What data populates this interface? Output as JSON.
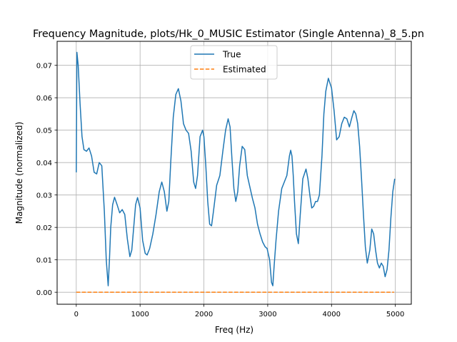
{
  "colors": {
    "true": "#1f77b4",
    "estimated": "#ff7f0e",
    "grid": "#b0b0b0",
    "axes": "#000000"
  },
  "chart_data": {
    "type": "line",
    "title": "Frequency Magnitude, plots/Hk_0_MUSIC Estimator (Single Antenna)_8_5.pn",
    "xlabel": "Freq (Hz)",
    "ylabel": "Magnitude (normalized)",
    "xlim": [
      -300,
      5250
    ],
    "ylim": [
      -0.0037,
      0.0774
    ],
    "xticks": [
      0,
      1000,
      2000,
      3000,
      4000,
      5000
    ],
    "xtick_labels": [
      "0",
      "1000",
      "2000",
      "3000",
      "4000",
      "5000"
    ],
    "yticks": [
      0.0,
      0.01,
      0.02,
      0.03,
      0.04,
      0.05,
      0.06,
      0.07
    ],
    "ytick_labels": [
      "0.00",
      "0.01",
      "0.02",
      "0.03",
      "0.04",
      "0.05",
      "0.06",
      "0.07"
    ],
    "grid": true,
    "legend_position": "top-center",
    "series": [
      {
        "name": "True",
        "style": "solid",
        "x": [
          0,
          10,
          30,
          60,
          90,
          120,
          160,
          200,
          240,
          280,
          320,
          360,
          400,
          440,
          470,
          500,
          520,
          540,
          570,
          600,
          640,
          680,
          720,
          760,
          800,
          840,
          870,
          900,
          930,
          960,
          1000,
          1040,
          1080,
          1110,
          1150,
          1200,
          1250,
          1300,
          1340,
          1380,
          1420,
          1450,
          1480,
          1520,
          1560,
          1600,
          1640,
          1680,
          1720,
          1760,
          1800,
          1840,
          1870,
          1900,
          1940,
          1980,
          2000,
          2030,
          2060,
          2090,
          2120,
          2150,
          2200,
          2250,
          2300,
          2340,
          2380,
          2410,
          2440,
          2470,
          2500,
          2530,
          2560,
          2600,
          2640,
          2680,
          2720,
          2760,
          2800,
          2840,
          2880,
          2920,
          2960,
          2990,
          3030,
          3060,
          3080,
          3100,
          3130,
          3170,
          3220,
          3260,
          3300,
          3340,
          3360,
          3380,
          3400,
          3420,
          3450,
          3480,
          3510,
          3550,
          3600,
          3630,
          3660,
          3690,
          3720,
          3750,
          3780,
          3810,
          3850,
          3880,
          3910,
          3950,
          4000,
          4040,
          4080,
          4120,
          4160,
          4200,
          4240,
          4280,
          4320,
          4350,
          4380,
          4410,
          4440,
          4470,
          4500,
          4530,
          4560,
          4600,
          4630,
          4660,
          4690,
          4720,
          4750,
          4780,
          4810,
          4840,
          4870,
          4900,
          4930,
          4960,
          4990
        ],
        "y": [
          0.037,
          0.074,
          0.07,
          0.058,
          0.048,
          0.044,
          0.0435,
          0.0445,
          0.042,
          0.037,
          0.0365,
          0.04,
          0.039,
          0.025,
          0.01,
          0.002,
          0.01,
          0.02,
          0.027,
          0.0293,
          0.027,
          0.0245,
          0.0255,
          0.024,
          0.0165,
          0.011,
          0.013,
          0.02,
          0.027,
          0.0292,
          0.026,
          0.016,
          0.012,
          0.0115,
          0.0135,
          0.018,
          0.024,
          0.031,
          0.034,
          0.031,
          0.025,
          0.028,
          0.04,
          0.054,
          0.061,
          0.0628,
          0.059,
          0.052,
          0.05,
          0.049,
          0.0435,
          0.034,
          0.032,
          0.036,
          0.048,
          0.05,
          0.048,
          0.039,
          0.028,
          0.021,
          0.0205,
          0.025,
          0.033,
          0.036,
          0.044,
          0.05,
          0.0535,
          0.051,
          0.041,
          0.032,
          0.028,
          0.031,
          0.039,
          0.045,
          0.044,
          0.036,
          0.0325,
          0.029,
          0.026,
          0.021,
          0.018,
          0.0155,
          0.014,
          0.0135,
          0.01,
          0.003,
          0.002,
          0.008,
          0.016,
          0.025,
          0.032,
          0.034,
          0.036,
          0.042,
          0.0438,
          0.042,
          0.036,
          0.028,
          0.018,
          0.015,
          0.024,
          0.035,
          0.038,
          0.035,
          0.03,
          0.026,
          0.0265,
          0.028,
          0.028,
          0.03,
          0.042,
          0.055,
          0.062,
          0.066,
          0.063,
          0.056,
          0.047,
          0.048,
          0.052,
          0.054,
          0.0535,
          0.051,
          0.054,
          0.056,
          0.055,
          0.052,
          0.045,
          0.035,
          0.024,
          0.014,
          0.009,
          0.013,
          0.0195,
          0.018,
          0.013,
          0.009,
          0.0075,
          0.009,
          0.008,
          0.0048,
          0.007,
          0.013,
          0.023,
          0.031,
          0.035
        ]
      },
      {
        "name": "Estimated",
        "style": "dashed",
        "x": [
          0,
          4980
        ],
        "y": [
          0.0,
          0.0
        ]
      }
    ]
  }
}
